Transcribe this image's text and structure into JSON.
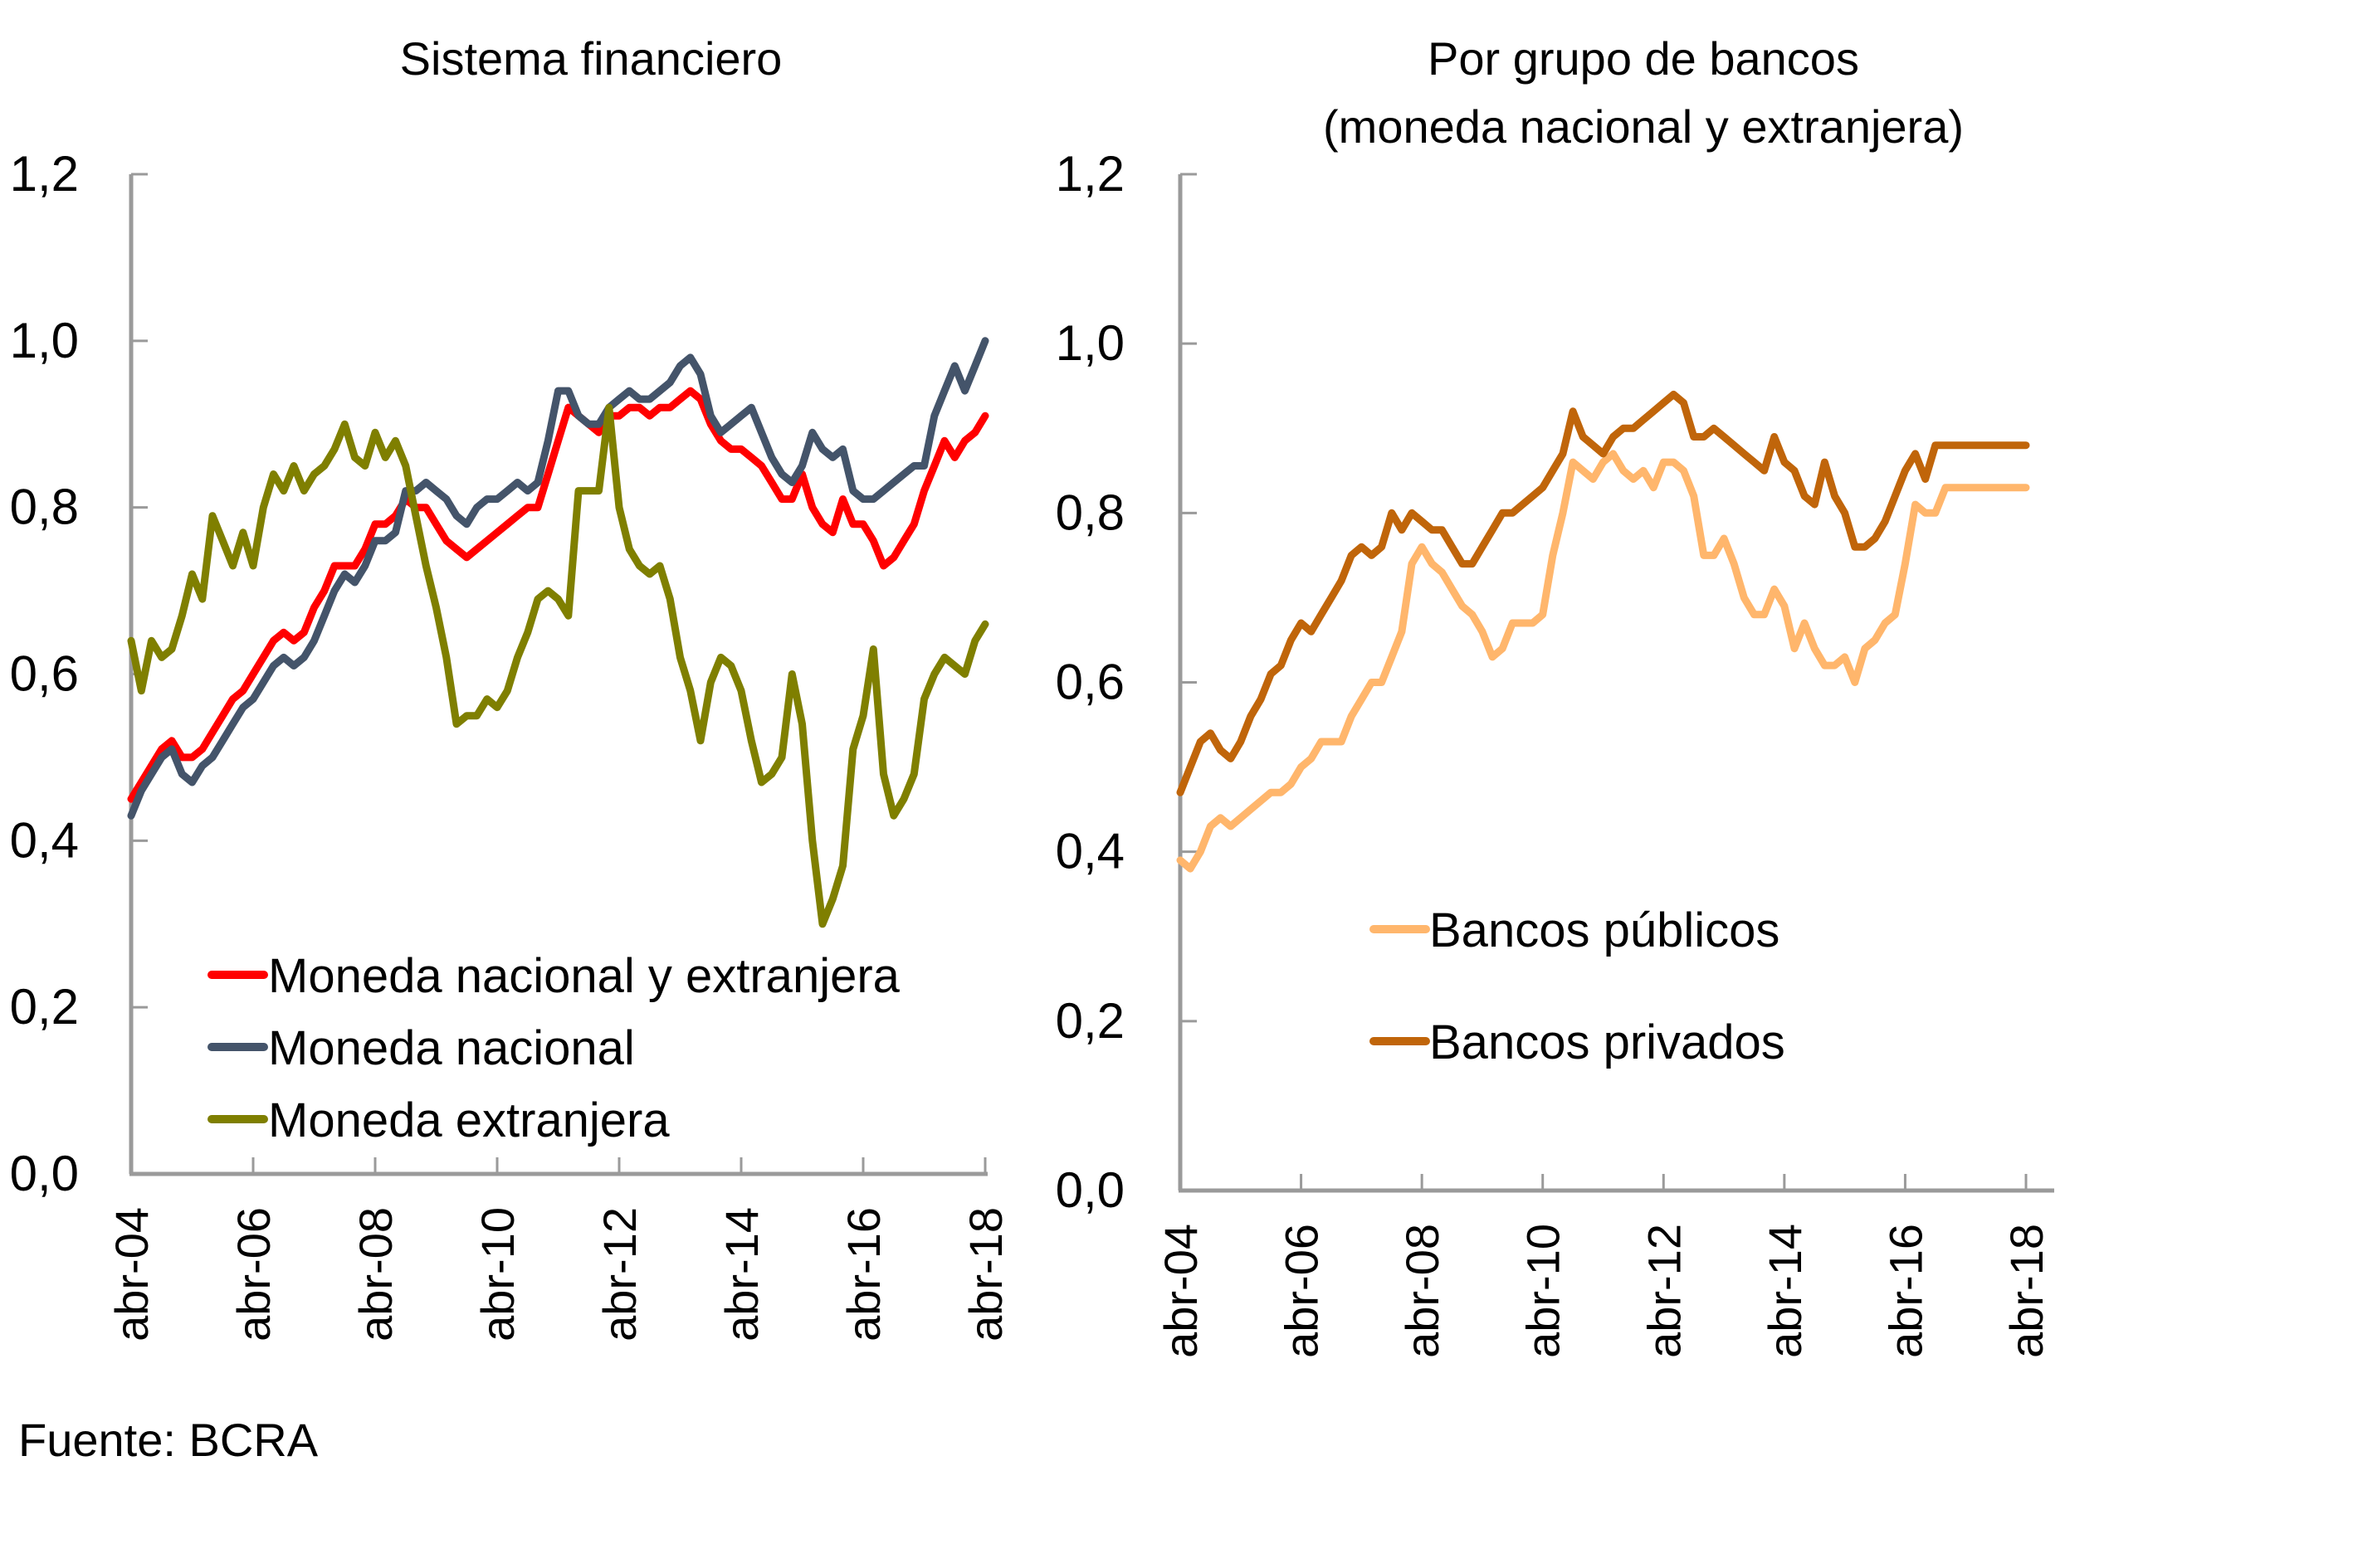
{
  "source_note": "Fuente: BCRA",
  "chart_data": [
    {
      "type": "line",
      "title": "Sistema financiero",
      "xlabel": "",
      "ylabel": "",
      "ylim": [
        0,
        1.2
      ],
      "yticks": [
        "0,0",
        "0,2",
        "0,4",
        "0,6",
        "0,8",
        "1,0",
        "1,2"
      ],
      "ytick_values": [
        0,
        0.2,
        0.4,
        0.6,
        0.8,
        1.0,
        1.2
      ],
      "xticks": [
        "abr-04",
        "abr-06",
        "abr-08",
        "abr-10",
        "abr-12",
        "abr-14",
        "abr-16",
        "abr-18"
      ],
      "x_start": "abr-04",
      "x_end": "abr-18",
      "x_step_months": 2,
      "grid": false,
      "legend_position": "bottom-left",
      "series": [
        {
          "name": "Moneda nacional y extranjera",
          "color": "#FF0000",
          "values": [
            0.45,
            0.47,
            0.49,
            0.51,
            0.52,
            0.5,
            0.5,
            0.51,
            0.53,
            0.55,
            0.57,
            0.58,
            0.6,
            0.62,
            0.64,
            0.65,
            0.64,
            0.65,
            0.68,
            0.7,
            0.73,
            0.73,
            0.73,
            0.75,
            0.78,
            0.78,
            0.79,
            0.81,
            0.8,
            0.8,
            0.78,
            0.76,
            0.75,
            0.74,
            0.75,
            0.76,
            0.77,
            0.78,
            0.79,
            0.8,
            0.8,
            0.84,
            0.88,
            0.92,
            0.91,
            0.9,
            0.89,
            0.91,
            0.91,
            0.92,
            0.92,
            0.91,
            0.92,
            0.92,
            0.93,
            0.94,
            0.93,
            0.9,
            0.88,
            0.87,
            0.87,
            0.86,
            0.85,
            0.83,
            0.81,
            0.81,
            0.84,
            0.8,
            0.78,
            0.77,
            0.81,
            0.78,
            0.78,
            0.76,
            0.73,
            0.74,
            0.76,
            0.78,
            0.82,
            0.85,
            0.88,
            0.86,
            0.88,
            0.89,
            0.91
          ]
        },
        {
          "name": "Moneda nacional",
          "color": "#44546A",
          "values": [
            0.43,
            0.46,
            0.48,
            0.5,
            0.51,
            0.48,
            0.47,
            0.49,
            0.5,
            0.52,
            0.54,
            0.56,
            0.57,
            0.59,
            0.61,
            0.62,
            0.61,
            0.62,
            0.64,
            0.67,
            0.7,
            0.72,
            0.71,
            0.73,
            0.76,
            0.76,
            0.77,
            0.82,
            0.82,
            0.83,
            0.82,
            0.81,
            0.79,
            0.78,
            0.8,
            0.81,
            0.81,
            0.82,
            0.83,
            0.82,
            0.83,
            0.88,
            0.94,
            0.94,
            0.91,
            0.9,
            0.9,
            0.92,
            0.93,
            0.94,
            0.93,
            0.93,
            0.94,
            0.95,
            0.97,
            0.98,
            0.96,
            0.91,
            0.89,
            0.9,
            0.91,
            0.92,
            0.89,
            0.86,
            0.84,
            0.83,
            0.85,
            0.89,
            0.87,
            0.86,
            0.87,
            0.82,
            0.81,
            0.81,
            0.82,
            0.83,
            0.84,
            0.85,
            0.85,
            0.91,
            0.94,
            0.97,
            0.94,
            0.97,
            1.0
          ]
        },
        {
          "name": "Moneda extranjera",
          "color": "#7F7F00",
          "values": [
            0.64,
            0.58,
            0.64,
            0.62,
            0.63,
            0.67,
            0.72,
            0.69,
            0.79,
            0.76,
            0.73,
            0.77,
            0.73,
            0.8,
            0.84,
            0.82,
            0.85,
            0.82,
            0.84,
            0.85,
            0.87,
            0.9,
            0.86,
            0.85,
            0.89,
            0.86,
            0.88,
            0.85,
            0.79,
            0.73,
            0.68,
            0.62,
            0.54,
            0.55,
            0.55,
            0.57,
            0.56,
            0.58,
            0.62,
            0.65,
            0.69,
            0.7,
            0.69,
            0.67,
            0.82,
            0.82,
            0.82,
            0.92,
            0.8,
            0.75,
            0.73,
            0.72,
            0.73,
            0.69,
            0.62,
            0.58,
            0.52,
            0.59,
            0.62,
            0.61,
            0.58,
            0.52,
            0.47,
            0.48,
            0.5,
            0.6,
            0.54,
            0.4,
            0.3,
            0.33,
            0.37,
            0.51,
            0.55,
            0.63,
            0.48,
            0.43,
            0.45,
            0.48,
            0.57,
            0.6,
            0.62,
            0.61,
            0.6,
            0.64,
            0.66
          ]
        }
      ]
    },
    {
      "type": "line",
      "title": "Por grupo de bancos (moneda nacional y extranjera)",
      "title_lines": [
        "Por grupo de bancos",
        "(moneda nacional y extranjera)"
      ],
      "xlabel": "",
      "ylabel": "",
      "ylim": [
        0,
        1.2
      ],
      "yticks": [
        "0,0",
        "0,2",
        "0,4",
        "0,6",
        "0,8",
        "1,0",
        "1,2"
      ],
      "ytick_values": [
        0,
        0.2,
        0.4,
        0.6,
        0.8,
        1.0,
        1.2
      ],
      "xticks": [
        "abr-04",
        "abr-06",
        "abr-08",
        "abr-10",
        "abr-12",
        "abr-14",
        "abr-16",
        "abr-18"
      ],
      "x_start": "abr-04",
      "x_end": "abr-18",
      "x_step_months": 2,
      "grid": false,
      "legend_position": "center-left",
      "series": [
        {
          "name": "Bancos públicos",
          "color": "#FFB66C",
          "values": [
            0.39,
            0.38,
            0.4,
            0.43,
            0.44,
            0.43,
            0.44,
            0.45,
            0.46,
            0.47,
            0.47,
            0.48,
            0.5,
            0.51,
            0.53,
            0.53,
            0.53,
            0.56,
            0.58,
            0.6,
            0.6,
            0.63,
            0.66,
            0.74,
            0.76,
            0.74,
            0.73,
            0.71,
            0.69,
            0.68,
            0.66,
            0.63,
            0.64,
            0.67,
            0.67,
            0.67,
            0.68,
            0.75,
            0.8,
            0.86,
            0.85,
            0.84,
            0.86,
            0.87,
            0.85,
            0.84,
            0.85,
            0.83,
            0.86,
            0.86,
            0.85,
            0.82,
            0.75,
            0.75,
            0.77,
            0.74,
            0.7,
            0.68,
            0.68,
            0.71,
            0.69,
            0.64,
            0.67,
            0.64,
            0.62,
            0.62,
            0.63,
            0.6,
            0.64,
            0.65,
            0.67,
            0.68,
            0.74,
            0.81,
            0.8,
            0.8,
            0.83,
            0.83,
            0.83,
            0.83,
            0.83,
            0.83,
            0.83,
            0.83,
            0.83
          ]
        },
        {
          "name": "Bancos privados",
          "color": "#C0650A",
          "values": [
            0.47,
            0.5,
            0.53,
            0.54,
            0.52,
            0.51,
            0.53,
            0.56,
            0.58,
            0.61,
            0.62,
            0.65,
            0.67,
            0.66,
            0.68,
            0.7,
            0.72,
            0.75,
            0.76,
            0.75,
            0.76,
            0.8,
            0.78,
            0.8,
            0.79,
            0.78,
            0.78,
            0.76,
            0.74,
            0.74,
            0.76,
            0.78,
            0.8,
            0.8,
            0.81,
            0.82,
            0.83,
            0.85,
            0.87,
            0.92,
            0.89,
            0.88,
            0.87,
            0.89,
            0.9,
            0.9,
            0.91,
            0.92,
            0.93,
            0.94,
            0.93,
            0.89,
            0.89,
            0.9,
            0.89,
            0.88,
            0.87,
            0.86,
            0.85,
            0.89,
            0.86,
            0.85,
            0.82,
            0.81,
            0.86,
            0.82,
            0.8,
            0.76,
            0.76,
            0.77,
            0.79,
            0.82,
            0.85,
            0.87,
            0.84,
            0.88,
            0.88,
            0.88,
            0.88,
            0.88,
            0.88,
            0.88,
            0.88,
            0.88,
            0.88
          ]
        }
      ]
    }
  ]
}
